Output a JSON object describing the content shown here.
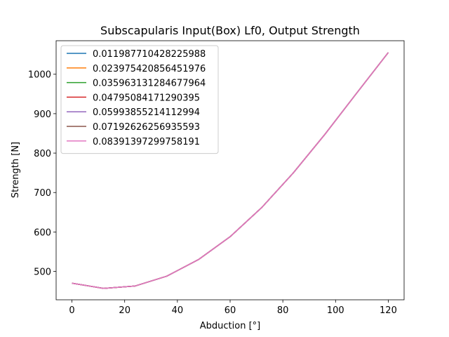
{
  "chart_data": {
    "type": "line",
    "title": "Subscapularis Input(Box) Lf0, Output Strength",
    "xlabel": "Abduction [°]",
    "ylabel": "Strength [N]",
    "xlim": [
      -6,
      126
    ],
    "ylim": [
      428,
      1085
    ],
    "xticks": [
      0,
      20,
      40,
      60,
      80,
      100,
      120
    ],
    "yticks": [
      500,
      600,
      700,
      800,
      900,
      1000
    ],
    "grid": false,
    "legend_position": "top-left",
    "x": [
      0,
      12,
      24,
      36,
      48,
      60,
      72,
      84,
      96,
      108,
      120
    ],
    "series": [
      {
        "name": "0.011987710428225988",
        "color": "#1f77b4",
        "values": [
          470,
          457,
          463,
          488,
          530,
          588,
          662,
          750,
          848,
          952,
          1055
        ]
      },
      {
        "name": "0.023975420856451976",
        "color": "#ff7f0e",
        "values": [
          470,
          457,
          463,
          488,
          530,
          588,
          662,
          750,
          848,
          952,
          1055
        ]
      },
      {
        "name": "0.035963131284677964",
        "color": "#2ca02c",
        "values": [
          470,
          457,
          463,
          488,
          530,
          588,
          662,
          750,
          848,
          952,
          1055
        ]
      },
      {
        "name": "0.04795084171290395",
        "color": "#d62728",
        "values": [
          470,
          457,
          463,
          488,
          530,
          588,
          662,
          750,
          848,
          952,
          1055
        ]
      },
      {
        "name": "0.05993855214112994",
        "color": "#9467bd",
        "values": [
          470,
          457,
          463,
          488,
          530,
          588,
          662,
          750,
          848,
          952,
          1055
        ]
      },
      {
        "name": "0.07192626256935593",
        "color": "#8c564b",
        "values": [
          470,
          457,
          463,
          488,
          530,
          588,
          662,
          750,
          848,
          952,
          1055
        ]
      },
      {
        "name": "0.08391397299758191",
        "color": "#e377c2",
        "values": [
          470,
          457,
          463,
          488,
          530,
          588,
          662,
          750,
          848,
          952,
          1055
        ]
      }
    ]
  }
}
